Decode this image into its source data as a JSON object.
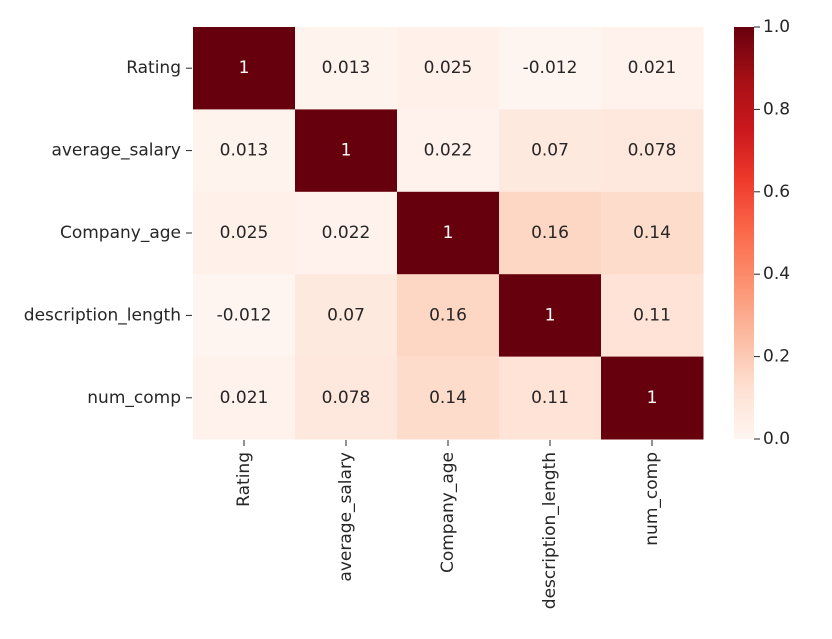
{
  "chart_data": {
    "type": "heatmap",
    "title": "",
    "xlabel": "",
    "ylabel": "",
    "rows": [
      "Rating",
      "average_salary",
      "Company_age",
      "description_length",
      "num_comp"
    ],
    "columns": [
      "Rating",
      "average_salary",
      "Company_age",
      "description_length",
      "num_comp"
    ],
    "values": [
      [
        1,
        0.013,
        0.025,
        -0.012,
        0.021
      ],
      [
        0.013,
        1,
        0.022,
        0.07,
        0.078
      ],
      [
        0.025,
        0.022,
        1,
        0.16,
        0.14
      ],
      [
        -0.012,
        0.07,
        0.16,
        1,
        0.11
      ],
      [
        0.021,
        0.078,
        0.14,
        0.11,
        1
      ]
    ],
    "value_labels": [
      [
        "1",
        "0.013",
        "0.025",
        "-0.012",
        "0.021"
      ],
      [
        "0.013",
        "1",
        "0.022",
        "0.07",
        "0.078"
      ],
      [
        "0.025",
        "0.022",
        "1",
        "0.16",
        "0.14"
      ],
      [
        "-0.012",
        "0.07",
        "0.16",
        "1",
        "0.11"
      ],
      [
        "0.021",
        "0.078",
        "0.14",
        "0.11",
        "1"
      ]
    ],
    "colorbar": {
      "colormap": "Reds",
      "range": [
        0.0,
        1.0
      ],
      "ticks": [
        0.0,
        0.2,
        0.4,
        0.6,
        0.8,
        1.0
      ],
      "tick_labels": [
        "0.0",
        "0.2",
        "0.4",
        "0.6",
        "0.8",
        "1.0"
      ]
    },
    "colors": {
      "low": "#fff5f0",
      "high": "#67000d"
    }
  }
}
